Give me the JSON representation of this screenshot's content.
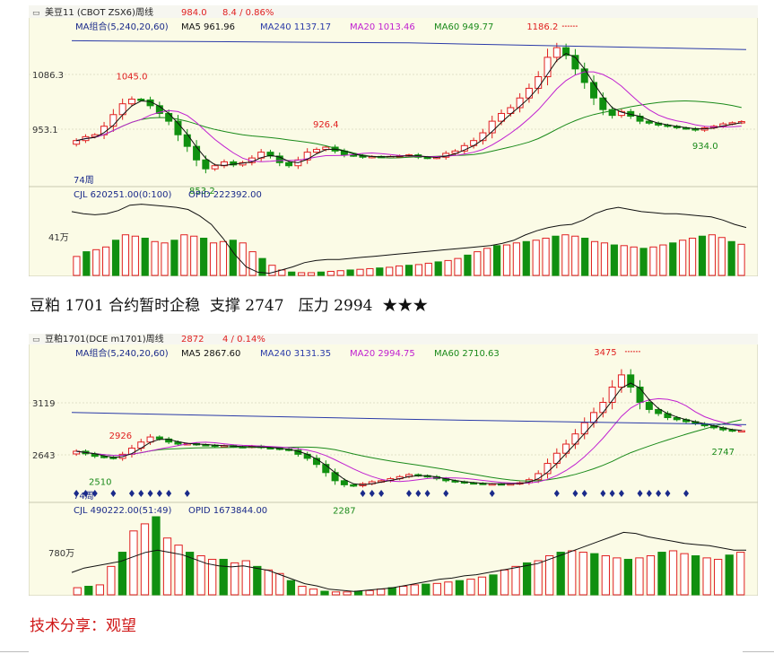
{
  "charts": [
    {
      "symbol_title": "美豆11 (CBOT ZSX6)周线",
      "price": "984.0",
      "change": "8.4 / 0.86%",
      "ma_group_label": "MA组合(5,240,20,60)",
      "ma5_label": "MA5 961.96",
      "ma240_label": "MA240 1137.17",
      "ma20_label": "MA20 1013.46",
      "ma60_label": "MA60 949.77",
      "y_labels": [
        "1086.3",
        "953.1"
      ],
      "period_label": "74周",
      "vol_label": "CJL  620251.00(0:100)",
      "opid_label": "OPID  222392.00",
      "vol_y_label": "41万",
      "annotations": [
        {
          "text": "1045.0",
          "kind": "high"
        },
        {
          "text": "853.2",
          "kind": "low"
        },
        {
          "text": "926.4",
          "kind": "high"
        },
        {
          "text": "1186.2",
          "kind": "high_arrow"
        },
        {
          "text": "934.0",
          "kind": "low"
        }
      ]
    },
    {
      "symbol_title": "豆粕1701(DCE m1701)周线",
      "price": "2872",
      "change": "4 / 0.14%",
      "ma_group_label": "MA组合(5,240,20,60)",
      "ma5_label": "MA5 2867.60",
      "ma240_label": "MA240 3131.35",
      "ma20_label": "MA20 2994.75",
      "ma60_label": "MA60 2710.63",
      "y_labels": [
        "3119",
        "2643"
      ],
      "period_label": "74周",
      "vol_label": "CJL  490222.00(51:49)",
      "opid_label": "OPID  1673844.00",
      "vol_y_label": "780万",
      "annotations": [
        {
          "text": "2926",
          "kind": "high"
        },
        {
          "text": "2510",
          "kind": "low"
        },
        {
          "text": "2287",
          "kind": "low"
        },
        {
          "text": "3475",
          "kind": "high_arrow"
        },
        {
          "text": "2747",
          "kind": "low"
        }
      ]
    }
  ],
  "caption": {
    "title": "豆粕 1701 合约暂时企稳",
    "support": "支撑 2747",
    "resistance": "压力 2994",
    "stars": "★★★"
  },
  "footer": "技术分享：观望",
  "colors": {
    "up": "#e02020",
    "down": "#109010",
    "ma5": "#111111",
    "ma20": "#c020d0",
    "ma60": "#1a8a1a",
    "ma240": "#2a3aa8",
    "panel_bg": "#fbfbe6"
  },
  "chart_data": [
    {
      "type": "candlestick",
      "title": "美豆11 (CBOT ZSX6)周线",
      "period": "weekly",
      "yticks": [
        1086.3,
        953.1
      ],
      "ylim": [
        830,
        1210
      ],
      "marked_high": 1186.2,
      "marked_lows": [
        853.2,
        934.0
      ],
      "ma_latest": {
        "MA5": 961.96,
        "MA20": 1013.46,
        "MA60": 949.77,
        "MA240": 1137.17
      },
      "close_series": [
        935,
        945,
        950,
        972,
        1002,
        1030,
        1042,
        1040,
        1025,
        1005,
        985,
        950,
        920,
        885,
        862,
        870,
        880,
        872,
        878,
        890,
        905,
        895,
        878,
        870,
        885,
        905,
        912,
        918,
        908,
        898,
        896,
        892,
        894,
        893,
        894,
        896,
        898,
        892,
        890,
        892,
        902,
        908,
        922,
        935,
        955,
        985,
        1005,
        1020,
        1045,
        1070,
        1100,
        1150,
        1175,
        1155,
        1120,
        1085,
        1045,
        1015,
        1000,
        1010,
        998,
        985,
        980,
        975,
        972,
        968,
        966,
        962,
        968,
        972,
        978,
        981,
        984
      ],
      "volume_series": [
        28,
        35,
        38,
        42,
        52,
        60,
        58,
        55,
        50,
        48,
        52,
        60,
        58,
        55,
        48,
        50,
        52,
        48,
        35,
        25,
        15,
        8,
        5,
        4,
        4,
        5,
        6,
        7,
        8,
        9,
        10,
        11,
        12,
        14,
        15,
        16,
        18,
        20,
        22,
        25,
        30,
        35,
        40,
        44,
        45,
        48,
        50,
        52,
        55,
        58,
        60,
        58,
        55,
        50,
        48,
        45,
        44,
        42,
        40,
        42,
        45,
        48,
        52,
        55,
        58,
        60,
        56,
        50,
        46
      ],
      "opid_series": [
        60,
        58,
        57,
        58,
        61,
        66,
        67,
        66,
        65,
        64,
        62,
        56,
        48,
        35,
        20,
        8,
        3,
        2,
        5,
        8,
        12,
        14,
        15,
        15,
        16,
        17,
        18,
        19,
        20,
        21,
        22,
        23,
        24,
        25,
        26,
        27,
        28,
        30,
        33,
        38,
        42,
        45,
        47,
        48,
        52,
        58,
        62,
        64,
        62,
        60,
        59,
        58,
        58,
        57,
        56,
        55,
        52,
        48,
        45
      ]
    },
    {
      "type": "candlestick",
      "title": "豆粕1701(DCE m1701)周线",
      "period": "weekly",
      "yticks": [
        3119,
        2643
      ],
      "ylim": [
        2220,
        3560
      ],
      "marked_high": 3475,
      "marked_lows": [
        2510,
        2287,
        2747
      ],
      "ma_latest": {
        "MA5": 2867.6,
        "MA20": 2994.75,
        "MA60": 2710.63,
        "MA240": 3131.35
      },
      "close_series": [
        2670,
        2645,
        2620,
        2610,
        2600,
        2640,
        2700,
        2760,
        2810,
        2790,
        2760,
        2740,
        2745,
        2735,
        2730,
        2720,
        2725,
        2715,
        2710,
        2720,
        2705,
        2700,
        2690,
        2680,
        2640,
        2600,
        2540,
        2460,
        2380,
        2340,
        2330,
        2350,
        2370,
        2380,
        2400,
        2420,
        2440,
        2430,
        2420,
        2400,
        2380,
        2370,
        2360,
        2355,
        2350,
        2350,
        2348,
        2350,
        2360,
        2390,
        2450,
        2550,
        2650,
        2740,
        2840,
        2950,
        3050,
        3150,
        3300,
        3420,
        3300,
        3150,
        3080,
        3040,
        3000,
        2980,
        2960,
        2940,
        2920,
        2900,
        2880,
        2870,
        2872
      ],
      "volume_series": [
        10,
        12,
        14,
        40,
        60,
        90,
        100,
        110,
        80,
        70,
        60,
        55,
        50,
        50,
        45,
        48,
        40,
        35,
        30,
        20,
        12,
        8,
        5,
        4,
        4,
        5,
        6,
        8,
        10,
        12,
        14,
        15,
        16,
        18,
        20,
        22,
        25,
        28,
        35,
        40,
        45,
        48,
        55,
        60,
        62,
        60,
        58,
        55,
        52,
        50,
        52,
        55,
        60,
        62,
        58,
        55,
        52,
        50,
        56,
        60
      ],
      "opid_series": [
        20,
        24,
        26,
        28,
        30,
        34,
        38,
        40,
        38,
        36,
        32,
        28,
        26,
        25,
        26,
        24,
        22,
        18,
        14,
        10,
        8,
        5,
        4,
        3,
        4,
        5,
        6,
        8,
        10,
        12,
        14,
        15,
        17,
        18,
        20,
        22,
        24,
        26,
        28,
        32,
        36,
        40,
        44,
        48,
        52,
        56,
        55,
        52,
        50,
        48,
        46,
        45,
        44,
        42,
        40,
        40
      ]
    }
  ]
}
